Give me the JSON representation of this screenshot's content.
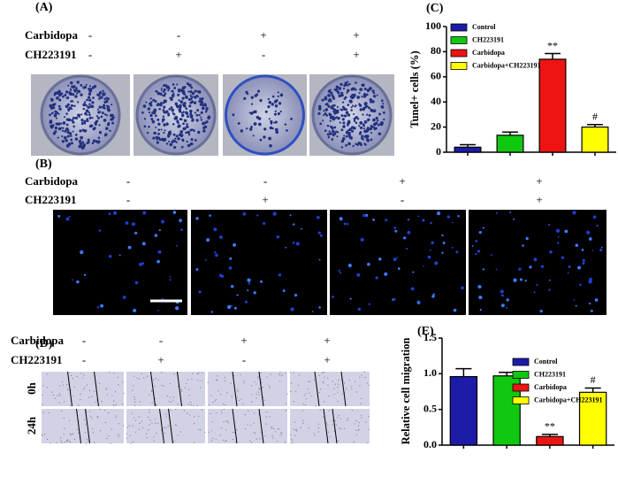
{
  "panels": {
    "A": {
      "label": "(A)",
      "rows": [
        {
          "name": "Carbidopa",
          "signs": [
            "-",
            "-",
            "+",
            "+"
          ]
        },
        {
          "name": "CH223191",
          "signs": [
            "-",
            "+",
            "-",
            "+"
          ]
        }
      ]
    },
    "B": {
      "label": "(B)",
      "rows": [
        {
          "name": "Carbidopa",
          "signs": [
            "-",
            "-",
            "+",
            "+"
          ]
        },
        {
          "name": "CH223191",
          "signs": [
            "-",
            "+",
            "-",
            "+"
          ]
        }
      ]
    },
    "D": {
      "label": "(D)",
      "rows": [
        {
          "name": "Carbidopa",
          "signs": [
            "-",
            "-",
            "+",
            "+"
          ]
        },
        {
          "name": "CH223191",
          "signs": [
            "-",
            "+",
            "-",
            "+"
          ]
        }
      ],
      "times": [
        "0h",
        "24h"
      ]
    }
  },
  "chart_data": [
    {
      "type": "bar",
      "label": "(C)",
      "y_label": "Tunel+ cells (%)",
      "ylim": [
        0,
        100
      ],
      "yticks": [
        0,
        20,
        40,
        60,
        80,
        100
      ],
      "series": [
        {
          "name": "Control",
          "color": "#1c1ca8",
          "values": [
            4
          ],
          "errors": [
            2
          ]
        },
        {
          "name": "CH223191",
          "color": "#10c810",
          "values": [
            13.5
          ],
          "errors": [
            2.5
          ]
        },
        {
          "name": "Carbidopa",
          "color": "#ee1414",
          "values": [
            74
          ],
          "errors": [
            4.5
          ],
          "annotation": "**"
        },
        {
          "name": "Carbidopa+CH223191",
          "color": "#ffff00",
          "values": [
            20
          ],
          "errors": [
            2
          ],
          "annotation": "#"
        }
      ]
    },
    {
      "type": "bar",
      "label": "(E)",
      "y_label": "Relative cell migration",
      "ylim": [
        0,
        1.5
      ],
      "yticks": [
        {
          "value": 0,
          "label": "0.0"
        },
        0.5,
        {
          "value": 1,
          "label": "1.0"
        },
        1.5
      ],
      "series": [
        {
          "name": "Control",
          "color": "#1c1ca8",
          "values": [
            0.96
          ],
          "errors": [
            0.11
          ]
        },
        {
          "name": "CH223191",
          "color": "#10c810",
          "values": [
            0.97
          ],
          "errors": [
            0.05
          ]
        },
        {
          "name": "Carbidopa",
          "color": "#ee1414",
          "values": [
            0.12
          ],
          "errors": [
            0.03
          ],
          "annotation": "**"
        },
        {
          "name": "Carbidopa+CH223191",
          "color": "#ffff00",
          "values": [
            0.74
          ],
          "errors": [
            0.06
          ],
          "annotation": "#"
        }
      ]
    }
  ]
}
